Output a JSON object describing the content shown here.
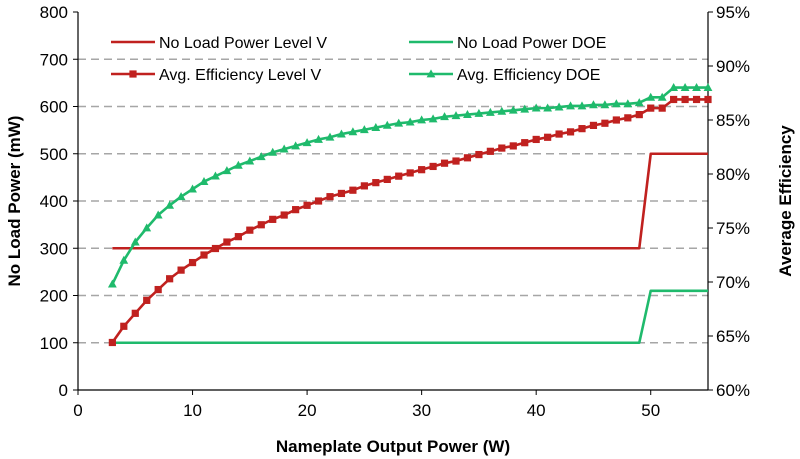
{
  "chart_data": {
    "type": "line",
    "xlabel": "Nameplate Output Power (W)",
    "ylabel": "No Load Power (mW)",
    "y2label": "Average Efficiency",
    "xlim": [
      0,
      55
    ],
    "ylim": [
      0,
      800
    ],
    "y2lim": [
      60,
      95
    ],
    "x_ticks": [
      0,
      10,
      20,
      30,
      40,
      50
    ],
    "y_ticks": [
      0,
      100,
      200,
      300,
      400,
      500,
      600,
      700,
      800
    ],
    "y2_ticks": [
      60,
      65,
      70,
      75,
      80,
      85,
      90,
      95
    ],
    "y2_tick_labels": [
      "60%",
      "65%",
      "70%",
      "75%",
      "80%",
      "85%",
      "90%",
      "95%"
    ],
    "grid": "horizontal dashed",
    "legend_placement": "top-left",
    "colors": {
      "level_v": "#c0211f",
      "doe": "#1fba6c",
      "grid": "#a6a6a6"
    },
    "series": [
      {
        "name": "No Load Power Level V",
        "axis": "left",
        "marker": "none",
        "color": "#c0211f",
        "x": [
          3,
          49,
          50,
          55
        ],
        "y": [
          300,
          300,
          500,
          500
        ]
      },
      {
        "name": "No Load Power DOE",
        "axis": "left",
        "marker": "none",
        "color": "#1fba6c",
        "x": [
          3,
          49,
          50,
          55
        ],
        "y": [
          100,
          100,
          210,
          210
        ]
      },
      {
        "name": "Avg. Efficiency Level V",
        "axis": "right",
        "marker": "square",
        "color": "#c0211f",
        "x": [
          3,
          4,
          5,
          6,
          7,
          8,
          9,
          10,
          11,
          12,
          13,
          14,
          15,
          16,
          17,
          18,
          19,
          20,
          21,
          22,
          23,
          24,
          25,
          26,
          27,
          28,
          29,
          30,
          31,
          32,
          33,
          34,
          35,
          36,
          37,
          38,
          39,
          40,
          41,
          42,
          43,
          44,
          45,
          46,
          47,
          48,
          49,
          50,
          51,
          52,
          53,
          54,
          55
        ],
        "y": [
          64.4,
          65.9,
          67.1,
          68.3,
          69.3,
          70.3,
          71.1,
          71.8,
          72.5,
          73.1,
          73.7,
          74.2,
          74.8,
          75.3,
          75.8,
          76.2,
          76.7,
          77.1,
          77.5,
          77.9,
          78.2,
          78.5,
          78.9,
          79.2,
          79.5,
          79.8,
          80.1,
          80.4,
          80.7,
          81.0,
          81.2,
          81.5,
          81.8,
          82.1,
          82.4,
          82.6,
          82.9,
          83.2,
          83.4,
          83.7,
          83.9,
          84.2,
          84.5,
          84.7,
          85.0,
          85.2,
          85.5,
          86.1,
          86.1,
          86.9,
          86.9,
          86.9,
          86.9
        ]
      },
      {
        "name": "Avg. Efficiency DOE",
        "axis": "right",
        "marker": "triangle",
        "color": "#1fba6c",
        "x": [
          3,
          4,
          5,
          6,
          7,
          8,
          9,
          10,
          11,
          12,
          13,
          14,
          15,
          16,
          17,
          18,
          19,
          20,
          21,
          22,
          23,
          24,
          25,
          26,
          27,
          28,
          29,
          30,
          31,
          32,
          33,
          34,
          35,
          36,
          37,
          38,
          39,
          40,
          41,
          42,
          43,
          44,
          45,
          46,
          47,
          48,
          49,
          50,
          51,
          52,
          53,
          54,
          55
        ],
        "y": [
          69.8,
          72.0,
          73.7,
          75.0,
          76.2,
          77.1,
          77.9,
          78.6,
          79.3,
          79.8,
          80.3,
          80.8,
          81.2,
          81.6,
          82.0,
          82.3,
          82.6,
          82.9,
          83.2,
          83.4,
          83.7,
          83.9,
          84.1,
          84.3,
          84.5,
          84.7,
          84.8,
          85.0,
          85.1,
          85.3,
          85.4,
          85.5,
          85.6,
          85.7,
          85.8,
          85.9,
          86.0,
          86.1,
          86.1,
          86.2,
          86.3,
          86.3,
          86.4,
          86.4,
          86.5,
          86.5,
          86.6,
          87.1,
          87.1,
          88.0,
          88.0,
          88.0,
          88.0
        ]
      }
    ]
  }
}
